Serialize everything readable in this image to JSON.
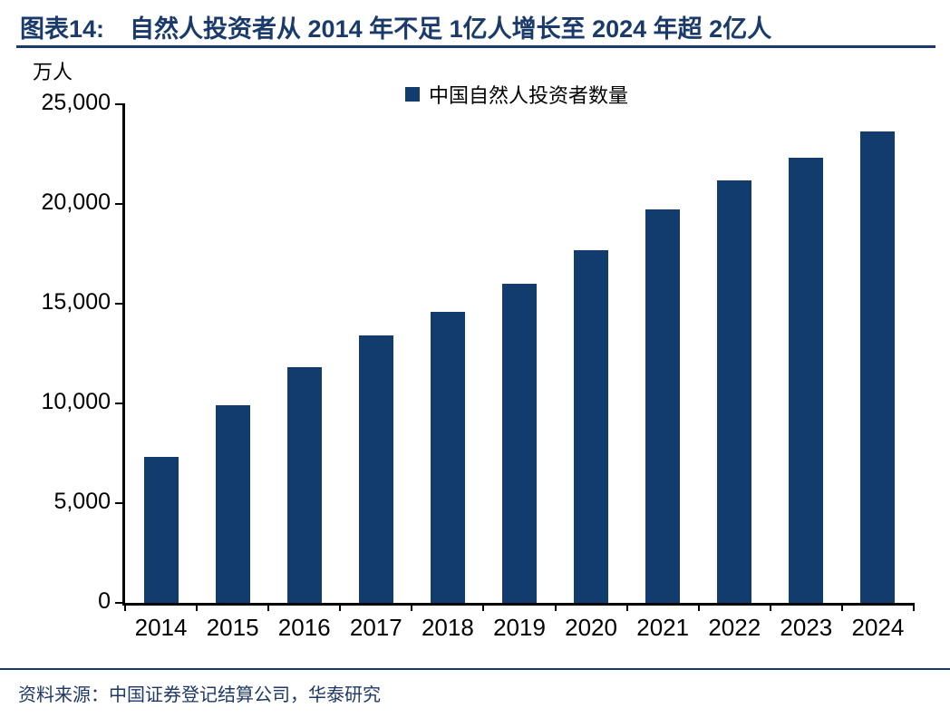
{
  "header": {
    "figure_label": "图表14:",
    "figure_title": "自然人投资者从 2014 年不足 1亿人增长至 2024 年超 2亿人"
  },
  "footer": {
    "source": "资料来源：中国证券登记结算公司，华泰研究"
  },
  "chart_data": {
    "type": "bar",
    "title": "自然人投资者从 2014 年不足 1亿人增长至 2024 年超 2亿人",
    "unit_label": "万人",
    "legend": [
      "中国自然人投资者数量"
    ],
    "legend_position": "top-center",
    "categories": [
      "2014",
      "2015",
      "2016",
      "2017",
      "2018",
      "2019",
      "2020",
      "2021",
      "2022",
      "2023",
      "2024"
    ],
    "values": [
      7300,
      9900,
      11800,
      13400,
      14600,
      16000,
      17700,
      19750,
      21200,
      22300,
      23650
    ],
    "xlabel": "",
    "ylabel": "万人",
    "ylim": [
      0,
      25000
    ],
    "yticks": [
      0,
      5000,
      10000,
      15000,
      20000,
      25000
    ],
    "grid": false,
    "colors": {
      "bar": "#123C6E",
      "title": "#1A3A6B",
      "axis": "#000000",
      "source_text": "#1F3864"
    }
  }
}
